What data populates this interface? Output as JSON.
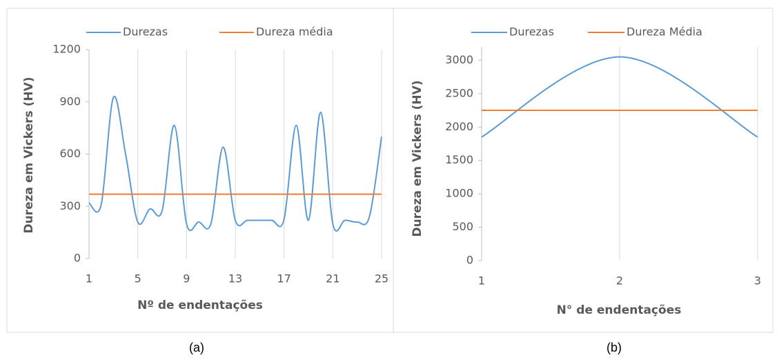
{
  "chart_data": [
    {
      "type": "line",
      "caption": "(a)",
      "xlabel": "Nº de endentações",
      "ylabel": "Dureza em Vickers (HV)",
      "x": [
        1,
        2,
        3,
        4,
        5,
        6,
        7,
        8,
        9,
        10,
        11,
        12,
        13,
        14,
        15,
        16,
        17,
        18,
        19,
        20,
        21,
        22,
        23,
        24,
        25
      ],
      "series": [
        {
          "name": "Durezas",
          "color": "#5b9bd5",
          "values": [
            320,
            310,
            925,
            600,
            210,
            285,
            275,
            765,
            200,
            210,
            200,
            640,
            220,
            220,
            220,
            220,
            225,
            765,
            220,
            840,
            200,
            220,
            210,
            240,
            700
          ]
        },
        {
          "name": "Dureza média",
          "color": "#ed7d31",
          "values": [
            370,
            370,
            370,
            370,
            370,
            370,
            370,
            370,
            370,
            370,
            370,
            370,
            370,
            370,
            370,
            370,
            370,
            370,
            370,
            370,
            370,
            370,
            370,
            370,
            370
          ]
        }
      ],
      "xlim": [
        1,
        25
      ],
      "xticks": [
        1,
        5,
        9,
        13,
        17,
        21,
        25
      ],
      "ylim": [
        0,
        1200
      ],
      "yticks": [
        0,
        300,
        600,
        900,
        1200
      ],
      "grid": true
    },
    {
      "type": "line",
      "caption": "(b)",
      "xlabel": "N° de endentações",
      "ylabel": "Dureza em Vickers (HV)",
      "x": [
        1,
        2,
        3
      ],
      "series": [
        {
          "name": "Durezas",
          "color": "#5b9bd5",
          "values": [
            1850,
            3050,
            1850
          ]
        },
        {
          "name": "Dureza Média",
          "color": "#ed7d31",
          "values": [
            2250,
            2250,
            2250
          ]
        }
      ],
      "xlim": [
        1,
        3
      ],
      "xticks": [
        1,
        2,
        3
      ],
      "ylim": [
        0,
        3200
      ],
      "yticks": [
        0,
        500,
        1000,
        1500,
        2000,
        2500,
        3000
      ],
      "grid": true
    }
  ]
}
